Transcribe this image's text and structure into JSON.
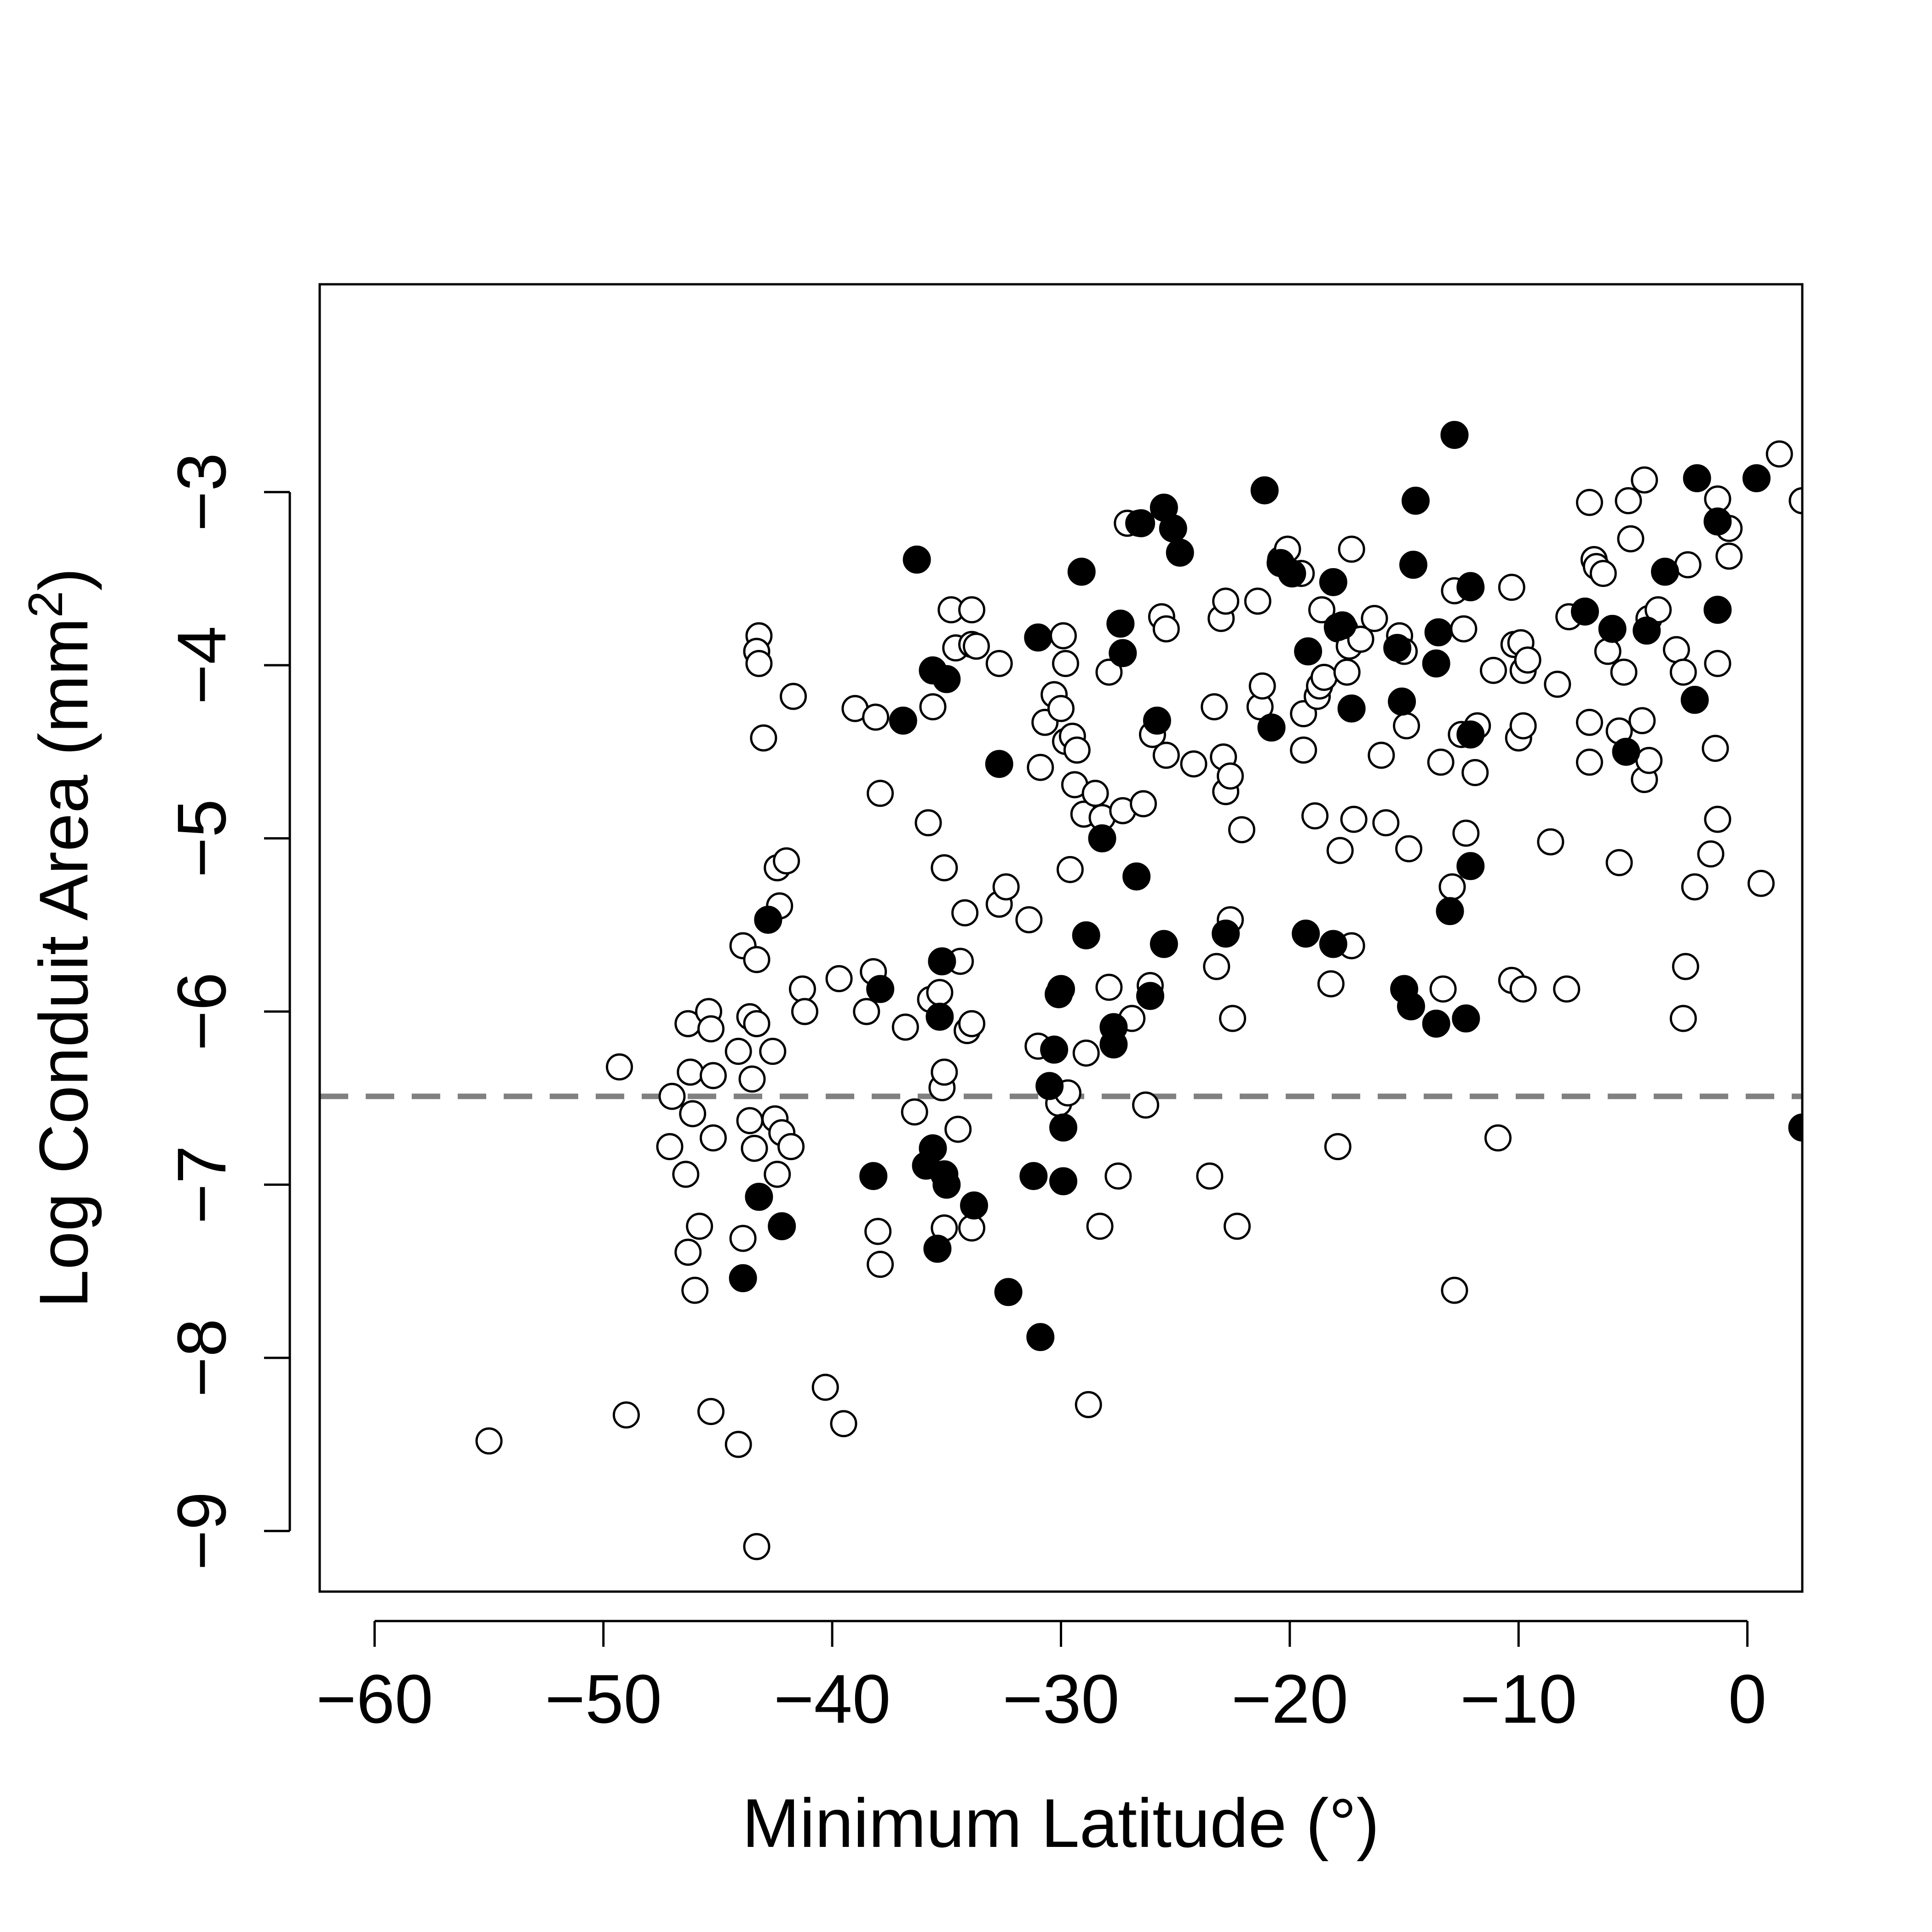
{
  "chart_data": {
    "type": "scatter",
    "xlabel": "Minimum Latitude (°)",
    "ylabel_main": "Log Conduit Area (mm",
    "ylabel_sup": "2",
    "ylabel_end": ")",
    "xlim": [
      -62.4,
      2.4
    ],
    "ylim": [
      -9.35,
      -1.8
    ],
    "xticks": [
      -60,
      -50,
      -40,
      -30,
      -20,
      -10,
      0
    ],
    "xtick_labels": [
      "−60",
      "−50",
      "−40",
      "−30",
      "−20",
      "−10",
      "0"
    ],
    "yticks": [
      -9,
      -8,
      -7,
      -6,
      -5,
      -4,
      -3
    ],
    "ytick_labels": [
      "−9",
      "−8",
      "−7",
      "−6",
      "−5",
      "−4",
      "−3"
    ],
    "reference_line": {
      "y": -6.49,
      "style": "dashed",
      "color": "#808080"
    },
    "colors": {
      "open_fill": "#ffffff",
      "filled_fill": "#000000",
      "stroke": "#000000"
    },
    "series": [
      {
        "marker": "open-circle",
        "points": [
          [
            -55.0,
            -8.48
          ],
          [
            -49.3,
            -6.32
          ],
          [
            -49.0,
            -8.33
          ],
          [
            -47.0,
            -6.49
          ],
          [
            -47.1,
            -6.78
          ],
          [
            -46.4,
            -6.94
          ],
          [
            -46.2,
            -6.35
          ],
          [
            -46.3,
            -6.07
          ],
          [
            -46.1,
            -6.59
          ],
          [
            -46.3,
            -7.39
          ],
          [
            -46.0,
            -7.61
          ],
          [
            -45.8,
            -7.24
          ],
          [
            -45.4,
            -6.0
          ],
          [
            -45.3,
            -6.1
          ],
          [
            -45.2,
            -6.37
          ],
          [
            -45.2,
            -6.73
          ],
          [
            -45.3,
            -8.31
          ],
          [
            -44.1,
            -8.5
          ],
          [
            -43.9,
            -7.31
          ],
          [
            -44.1,
            -6.23
          ],
          [
            -43.9,
            -5.62
          ],
          [
            -43.6,
            -6.03
          ],
          [
            -43.5,
            -6.39
          ],
          [
            -43.6,
            -6.63
          ],
          [
            -43.4,
            -6.79
          ],
          [
            -43.3,
            -5.7
          ],
          [
            -43.3,
            -6.07
          ],
          [
            -43.2,
            -3.83
          ],
          [
            -43.3,
            -3.92
          ],
          [
            -43.2,
            -3.99
          ],
          [
            -43.0,
            -4.42
          ],
          [
            -42.6,
            -6.23
          ],
          [
            -42.5,
            -6.62
          ],
          [
            -42.4,
            -6.94
          ],
          [
            -42.2,
            -6.7
          ],
          [
            -42.4,
            -5.17
          ],
          [
            -42.3,
            -5.39
          ],
          [
            -42.0,
            -5.13
          ],
          [
            -41.8,
            -6.78
          ],
          [
            -41.7,
            -4.18
          ],
          [
            -41.3,
            -5.87
          ],
          [
            -41.2,
            -6.0
          ],
          [
            -43.3,
            -9.09
          ],
          [
            -40.3,
            -8.17
          ],
          [
            -39.5,
            -8.38
          ],
          [
            -39.7,
            -5.81
          ],
          [
            -39.0,
            -4.25
          ],
          [
            -38.5,
            -6.0
          ],
          [
            -38.2,
            -5.77
          ],
          [
            -38.1,
            -4.3
          ],
          [
            -38.0,
            -7.27
          ],
          [
            -37.9,
            -7.46
          ],
          [
            -37.9,
            -4.74
          ],
          [
            -36.8,
            -6.09
          ],
          [
            -36.4,
            -6.58
          ],
          [
            -35.8,
            -4.91
          ],
          [
            -35.7,
            -5.93
          ],
          [
            -35.6,
            -4.24
          ],
          [
            -35.3,
            -5.89
          ],
          [
            -35.2,
            -6.44
          ],
          [
            -35.1,
            -6.35
          ],
          [
            -35.1,
            -7.25
          ],
          [
            -35.1,
            -5.17
          ],
          [
            -34.8,
            -3.68
          ],
          [
            -34.6,
            -3.9
          ],
          [
            -34.5,
            -6.68
          ],
          [
            -34.4,
            -5.71
          ],
          [
            -34.2,
            -5.43
          ],
          [
            -34.1,
            -6.11
          ],
          [
            -33.9,
            -6.07
          ],
          [
            -33.9,
            -7.25
          ],
          [
            -33.9,
            -3.68
          ],
          [
            -33.9,
            -3.88
          ],
          [
            -33.7,
            -3.89
          ],
          [
            -32.7,
            -3.99
          ],
          [
            -32.7,
            -5.38
          ],
          [
            -32.4,
            -5.28
          ],
          [
            -31.4,
            -5.47
          ],
          [
            -31.0,
            -6.2
          ],
          [
            -30.9,
            -4.59
          ],
          [
            -30.7,
            -4.33
          ],
          [
            -30.3,
            -4.17
          ],
          [
            -30.1,
            -6.53
          ],
          [
            -30.0,
            -4.25
          ],
          [
            -29.9,
            -3.83
          ],
          [
            -29.8,
            -4.44
          ],
          [
            -29.7,
            -6.47
          ],
          [
            -29.8,
            -3.99
          ],
          [
            -29.6,
            -5.18
          ],
          [
            -29.5,
            -4.41
          ],
          [
            -29.4,
            -4.69
          ],
          [
            -29.3,
            -4.49
          ],
          [
            -29.0,
            -4.86
          ],
          [
            -28.9,
            -6.24
          ],
          [
            -28.8,
            -8.27
          ],
          [
            -28.5,
            -4.74
          ],
          [
            -28.3,
            -7.24
          ],
          [
            -28.2,
            -4.88
          ],
          [
            -27.9,
            -4.04
          ],
          [
            -27.9,
            -5.86
          ],
          [
            -27.5,
            -6.95
          ],
          [
            -27.3,
            -4.84
          ],
          [
            -27.1,
            -3.18
          ],
          [
            -26.9,
            -6.04
          ],
          [
            -26.6,
            -3.18
          ],
          [
            -26.4,
            -4.8
          ],
          [
            -26.3,
            -6.54
          ],
          [
            -26.1,
            -5.85
          ],
          [
            -26.0,
            -4.4
          ],
          [
            -25.6,
            -3.72
          ],
          [
            -25.4,
            -3.79
          ],
          [
            -25.4,
            -4.52
          ],
          [
            -24.2,
            -4.57
          ],
          [
            -23.5,
            -6.95
          ],
          [
            -23.3,
            -4.24
          ],
          [
            -23.2,
            -5.74
          ],
          [
            -23.0,
            -3.73
          ],
          [
            -22.8,
            -3.63
          ],
          [
            -22.9,
            -4.53
          ],
          [
            -22.8,
            -4.73
          ],
          [
            -22.6,
            -4.64
          ],
          [
            -22.6,
            -5.47
          ],
          [
            -22.5,
            -6.04
          ],
          [
            -22.3,
            -7.24
          ],
          [
            -22.1,
            -4.95
          ],
          [
            -21.4,
            -3.63
          ],
          [
            -21.3,
            -4.24
          ],
          [
            -21.2,
            -4.12
          ],
          [
            -20.4,
            -3.39
          ],
          [
            -20.1,
            -3.33
          ],
          [
            -19.5,
            -3.47
          ],
          [
            -19.4,
            -4.28
          ],
          [
            -19.4,
            -4.49
          ],
          [
            -18.9,
            -4.87
          ],
          [
            -18.8,
            -4.18
          ],
          [
            -18.7,
            -4.12
          ],
          [
            -18.6,
            -3.68
          ],
          [
            -18.5,
            -4.07
          ],
          [
            -18.2,
            -5.84
          ],
          [
            -17.9,
            -3.79
          ],
          [
            -17.9,
            -6.78
          ],
          [
            -17.8,
            -5.07
          ],
          [
            -17.6,
            -3.79
          ],
          [
            -17.5,
            -4.04
          ],
          [
            -17.4,
            -3.89
          ],
          [
            -17.3,
            -5.62
          ],
          [
            -17.3,
            -3.33
          ],
          [
            -17.2,
            -4.89
          ],
          [
            -16.9,
            -3.85
          ],
          [
            -16.3,
            -3.73
          ],
          [
            -16.0,
            -4.52
          ],
          [
            -15.8,
            -4.91
          ],
          [
            -15.2,
            -3.83
          ],
          [
            -15.0,
            -3.92
          ],
          [
            -14.9,
            -4.35
          ],
          [
            -14.8,
            -5.06
          ],
          [
            -13.4,
            -4.56
          ],
          [
            -13.3,
            -5.87
          ],
          [
            -12.9,
            -5.28
          ],
          [
            -12.8,
            -3.57
          ],
          [
            -12.8,
            -7.61
          ],
          [
            -12.5,
            -4.4
          ],
          [
            -12.4,
            -3.79
          ],
          [
            -12.3,
            -4.97
          ],
          [
            -12.1,
            -3.54
          ],
          [
            -11.9,
            -4.62
          ],
          [
            -11.8,
            -4.35
          ],
          [
            -11.1,
            -4.03
          ],
          [
            -10.9,
            -6.73
          ],
          [
            -10.3,
            -5.82
          ],
          [
            -10.3,
            -3.55
          ],
          [
            -10.2,
            -3.88
          ],
          [
            -10.0,
            -4.42
          ],
          [
            -9.9,
            -3.87
          ],
          [
            -9.8,
            -4.35
          ],
          [
            -9.8,
            -4.03
          ],
          [
            -9.8,
            -5.87
          ],
          [
            -9.6,
            -3.97
          ],
          [
            -8.6,
            -5.02
          ],
          [
            -8.3,
            -4.11
          ],
          [
            -7.9,
            -5.87
          ],
          [
            -7.8,
            -3.72
          ],
          [
            -6.9,
            -4.33
          ],
          [
            -6.9,
            -3.06
          ],
          [
            -6.9,
            -4.56
          ],
          [
            -6.7,
            -3.39
          ],
          [
            -6.6,
            -3.43
          ],
          [
            -6.3,
            -3.47
          ],
          [
            -6.1,
            -3.92
          ],
          [
            -5.6,
            -4.38
          ],
          [
            -5.6,
            -5.14
          ],
          [
            -5.4,
            -4.04
          ],
          [
            -5.2,
            -3.05
          ],
          [
            -5.1,
            -3.27
          ],
          [
            -4.6,
            -4.32
          ],
          [
            -4.5,
            -2.93
          ],
          [
            -4.5,
            -4.66
          ],
          [
            -4.3,
            -3.73
          ],
          [
            -4.3,
            -4.55
          ],
          [
            -3.9,
            -3.68
          ],
          [
            -3.1,
            -3.91
          ],
          [
            -2.8,
            -6.04
          ],
          [
            -2.8,
            -4.04
          ],
          [
            -2.7,
            -5.74
          ],
          [
            -2.6,
            -3.42
          ],
          [
            -2.3,
            -5.28
          ],
          [
            -1.6,
            -5.09
          ],
          [
            -1.4,
            -4.48
          ],
          [
            -1.3,
            -4.89
          ],
          [
            -1.3,
            -3.99
          ],
          [
            -1.3,
            -3.04
          ],
          [
            -0.8,
            -3.21
          ],
          [
            -0.8,
            -3.37
          ],
          [
            0.6,
            -5.26
          ],
          [
            1.4,
            -2.78
          ],
          [
            2.4,
            -3.05
          ]
        ]
      },
      {
        "marker": "filled-circle",
        "points": [
          [
            -43.9,
            -7.54
          ],
          [
            -43.2,
            -7.07
          ],
          [
            -42.8,
            -5.47
          ],
          [
            -42.2,
            -7.24
          ],
          [
            -38.2,
            -6.95
          ],
          [
            -37.9,
            -5.87
          ],
          [
            -36.9,
            -4.32
          ],
          [
            -36.3,
            -3.39
          ],
          [
            -35.9,
            -6.89
          ],
          [
            -35.6,
            -4.03
          ],
          [
            -35.6,
            -6.79
          ],
          [
            -35.4,
            -7.37
          ],
          [
            -35.3,
            -6.03
          ],
          [
            -35.2,
            -5.71
          ],
          [
            -35.1,
            -6.94
          ],
          [
            -35.0,
            -4.08
          ],
          [
            -35.0,
            -7.0
          ],
          [
            -33.8,
            -7.12
          ],
          [
            -32.7,
            -4.57
          ],
          [
            -32.3,
            -7.62
          ],
          [
            -31.2,
            -6.95
          ],
          [
            -31.0,
            -3.84
          ],
          [
            -30.9,
            -7.88
          ],
          [
            -30.5,
            -6.43
          ],
          [
            -30.3,
            -6.22
          ],
          [
            -30.1,
            -5.9
          ],
          [
            -30.0,
            -5.87
          ],
          [
            -29.9,
            -6.67
          ],
          [
            -29.9,
            -6.98
          ],
          [
            -29.1,
            -3.46
          ],
          [
            -28.9,
            -5.56
          ],
          [
            -28.2,
            -5.0
          ],
          [
            -27.7,
            -6.09
          ],
          [
            -27.7,
            -6.19
          ],
          [
            -27.4,
            -3.76
          ],
          [
            -27.3,
            -3.93
          ],
          [
            -26.7,
            -5.22
          ],
          [
            -26.5,
            -3.18
          ],
          [
            -26.1,
            -5.91
          ],
          [
            -25.8,
            -4.32
          ],
          [
            -25.5,
            -5.61
          ],
          [
            -25.5,
            -3.09
          ],
          [
            -25.1,
            -3.21
          ],
          [
            -24.8,
            -3.35
          ],
          [
            -22.8,
            -5.55
          ],
          [
            -21.1,
            -2.99
          ],
          [
            -20.8,
            -4.36
          ],
          [
            -20.4,
            -3.41
          ],
          [
            -19.9,
            -3.47
          ],
          [
            -19.3,
            -5.55
          ],
          [
            -19.2,
            -3.92
          ],
          [
            -18.1,
            -3.52
          ],
          [
            -18.1,
            -5.61
          ],
          [
            -17.9,
            -3.78
          ],
          [
            -17.7,
            -3.77
          ],
          [
            -17.3,
            -4.25
          ],
          [
            -15.3,
            -3.9
          ],
          [
            -15.1,
            -4.21
          ],
          [
            -15.0,
            -5.87
          ],
          [
            -14.7,
            -5.97
          ],
          [
            -14.6,
            -3.42
          ],
          [
            -14.5,
            -3.05
          ],
          [
            -13.6,
            -6.07
          ],
          [
            -13.6,
            -3.99
          ],
          [
            -13.5,
            -3.81
          ],
          [
            -13.0,
            -5.42
          ],
          [
            -12.8,
            -2.67
          ],
          [
            -12.3,
            -6.04
          ],
          [
            -12.1,
            -3.55
          ],
          [
            -12.1,
            -4.4
          ],
          [
            -12.1,
            -5.16
          ],
          [
            -7.1,
            -3.69
          ],
          [
            -5.9,
            -3.79
          ],
          [
            -5.3,
            -4.5
          ],
          [
            -4.4,
            -3.8
          ],
          [
            -3.6,
            -3.46
          ],
          [
            -2.3,
            -4.2
          ],
          [
            -2.2,
            -2.92
          ],
          [
            -1.3,
            -3.68
          ],
          [
            -1.3,
            -3.17
          ],
          [
            0.4,
            -2.92
          ],
          [
            2.4,
            -6.67
          ]
        ]
      }
    ]
  }
}
